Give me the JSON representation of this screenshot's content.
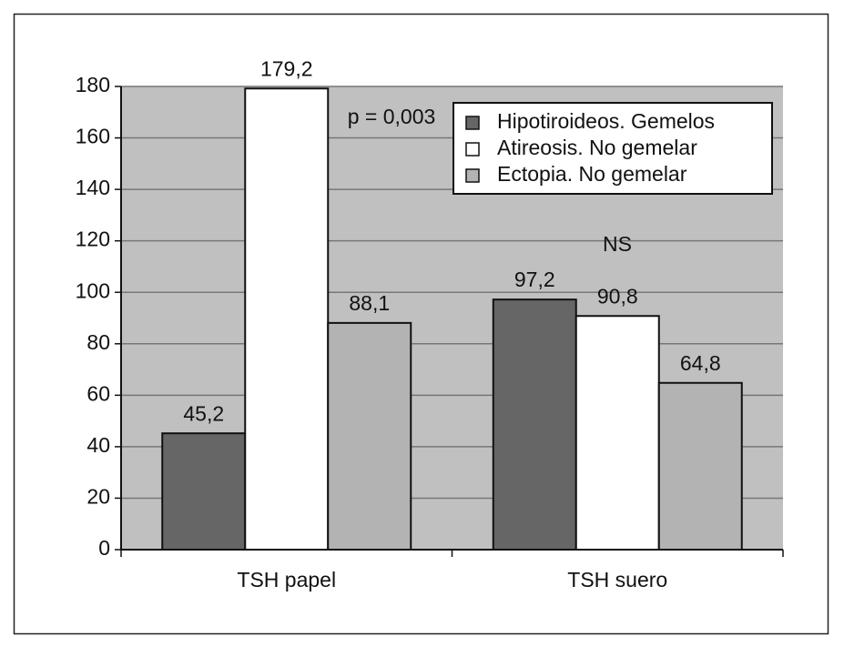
{
  "chart_data": {
    "type": "bar",
    "categories": [
      "TSH papel",
      "TSH suero"
    ],
    "series": [
      {
        "name": "Hipotiroideos. Gemelos",
        "color": "#666666",
        "values": [
          45.2,
          97.2
        ],
        "value_labels": [
          "45,2",
          "97,2"
        ]
      },
      {
        "name": "Atireosis. No gemelar",
        "color": "#ffffff",
        "values": [
          179.2,
          90.8
        ],
        "value_labels": [
          "179,2",
          "90,8"
        ]
      },
      {
        "name": "Ectopia. No gemelar",
        "color": "#b3b3b3",
        "values": [
          88.1,
          64.8
        ],
        "value_labels": [
          "88,1",
          "64,8"
        ]
      }
    ],
    "annotations": [
      "p = 0,003",
      "NS"
    ],
    "ylim": [
      0,
      180
    ],
    "yticks": [
      0,
      20,
      40,
      60,
      80,
      100,
      120,
      140,
      160,
      180
    ],
    "grid": true,
    "plot_background": "#c0c0c0",
    "legend_position": "upper right"
  }
}
